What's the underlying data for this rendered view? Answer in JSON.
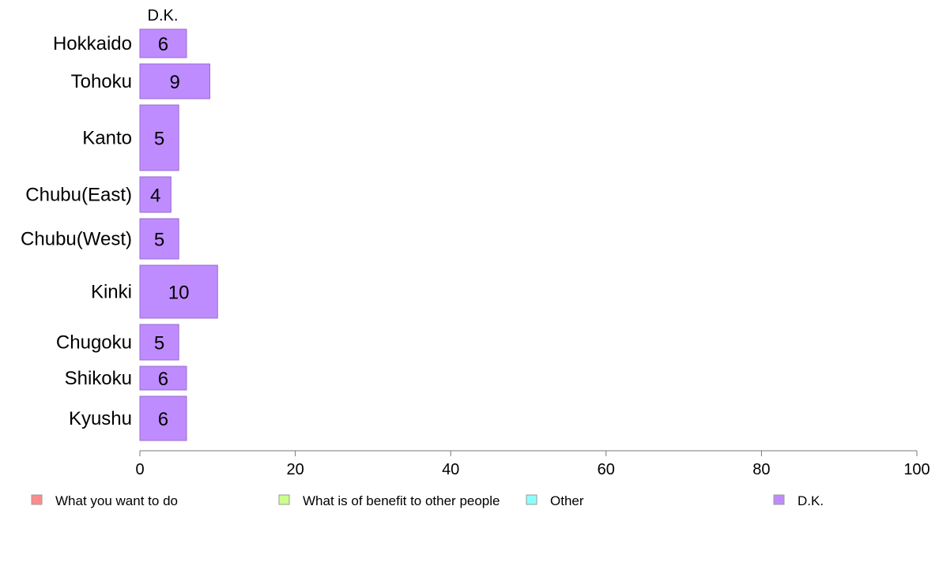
{
  "chart_data": {
    "type": "bar",
    "orientation": "horizontal",
    "stacked": true,
    "categories": [
      "Hokkaido",
      "Tohoku",
      "Kanto",
      "Chubu(East)",
      "Chubu(West)",
      "Kinki",
      "Chugoku",
      "Shikoku",
      "Kyushu"
    ],
    "series": [
      {
        "name": "What you want to do",
        "color": "#ff8c8c",
        "values": [
          null,
          null,
          null,
          null,
          null,
          null,
          null,
          null,
          null
        ]
      },
      {
        "name": "What is of benefit to other people",
        "color": "#ccff8c",
        "values": [
          null,
          null,
          null,
          null,
          null,
          null,
          null,
          null,
          null
        ]
      },
      {
        "name": "Other",
        "color": "#8cffff",
        "values": [
          null,
          null,
          null,
          null,
          null,
          null,
          null,
          null,
          null
        ]
      },
      {
        "name": "D.K.",
        "color": "#bf8cff",
        "values": [
          6,
          9,
          5,
          4,
          5,
          10,
          5,
          6,
          6
        ]
      }
    ],
    "visible_series_header": "D.K.",
    "xlim": [
      0,
      100
    ],
    "xticks": [
      0,
      20,
      40,
      60,
      80,
      100
    ],
    "xlabel": "",
    "ylabel": "",
    "title": "",
    "grid": false,
    "legend_position": "bottom"
  }
}
